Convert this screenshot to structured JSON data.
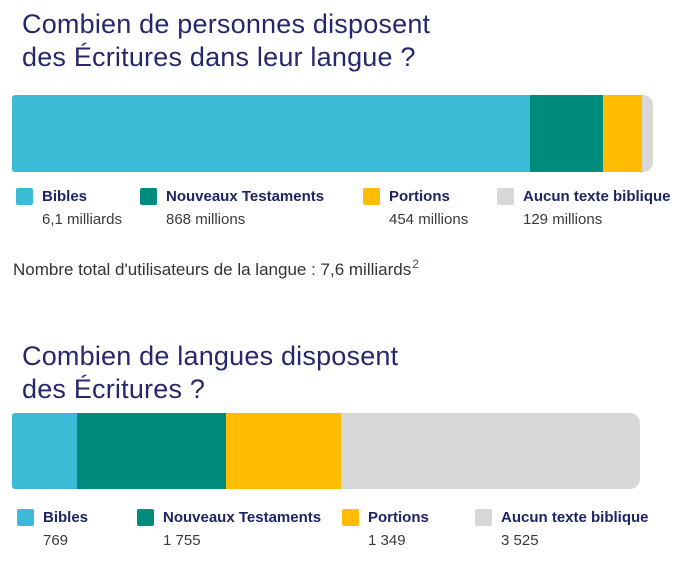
{
  "colors": {
    "title_navy": "#29276B",
    "legend_label_navy": "#1F2466",
    "value_text": "#3A3A3A",
    "note_text": "#333333",
    "footnote_ref": "#4646A5",
    "bibles": "#3CBBD7",
    "nouveaux_testaments": "#008C7D",
    "portions": "#FFBC00",
    "aucun_texte_biblique": "#D8D8D8"
  },
  "chart_data": [
    {
      "type": "bar",
      "variant": "stacked-horizontal-single-bar",
      "axes": "none",
      "legend_position": "bottom",
      "title": "Combien de personnes disposent des Écritures dans leur langue ?",
      "title_lines": [
        "Combien de personnes disposent",
        "des Écritures dans leur langue ?"
      ],
      "categories": [
        "Bibles",
        "Nouveaux Testaments",
        "Portions",
        "Aucun texte biblique"
      ],
      "values": [
        6100,
        868,
        454,
        129
      ],
      "unit": "millions de personnes",
      "value_labels": [
        "6,1 milliards",
        "868 millions",
        "454 millions",
        "129 millions"
      ],
      "colors": [
        "#3CBBD7",
        "#008C7D",
        "#FFBC00",
        "#D8D8D8"
      ],
      "note": "Nombre total d'utilisateurs de la langue : 7,6 milliards",
      "note_superscript": "2"
    },
    {
      "type": "bar",
      "variant": "stacked-horizontal-single-bar",
      "axes": "none",
      "legend_position": "bottom",
      "title": "Combien de langues disposent des Écritures ?",
      "title_lines": [
        "Combien de langues disposent",
        "des Écritures ?"
      ],
      "categories": [
        "Bibles",
        "Nouveaux Testaments",
        "Portions",
        "Aucun texte biblique"
      ],
      "values": [
        769,
        1755,
        1349,
        3525
      ],
      "unit": "langues",
      "value_labels": [
        "769",
        "1 755",
        "1 349",
        "3 525"
      ],
      "colors": [
        "#3CBBD7",
        "#008C7D",
        "#FFBC00",
        "#D8D8D8"
      ]
    }
  ]
}
